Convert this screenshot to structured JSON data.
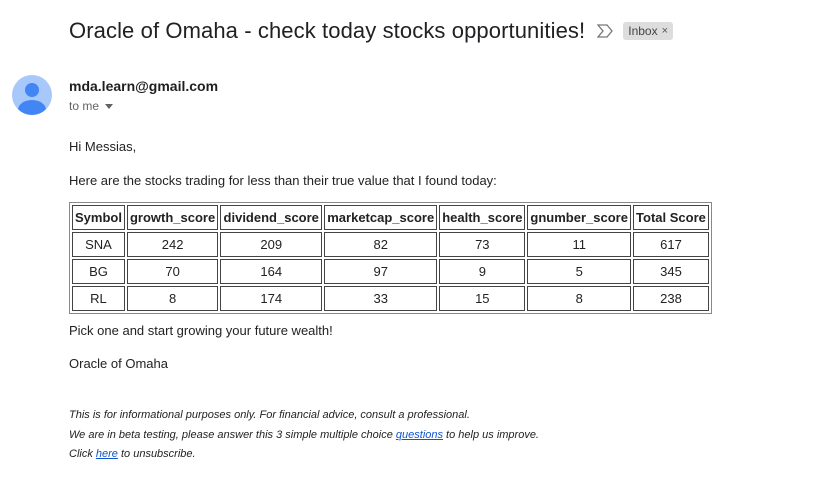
{
  "email": {
    "subject": "Oracle of Omaha - check today stocks opportunities!",
    "label": "Inbox",
    "label_remove": "×",
    "sender": "mda.learn@gmail.com",
    "recipient": "to me"
  },
  "body": {
    "greeting": "Hi Messias,",
    "intro": "Here are the stocks trading for less than their true value that I found today:",
    "cta": "Pick one and start growing your future wealth!",
    "signature": "Oracle of Omaha"
  },
  "table": {
    "headers": [
      "Symbol",
      "growth_score",
      "dividend_score",
      "marketcap_score",
      "health_score",
      "gnumber_score",
      "Total Score"
    ],
    "rows": [
      [
        "SNA",
        "242",
        "209",
        "82",
        "73",
        "11",
        "617"
      ],
      [
        "BG",
        "70",
        "164",
        "97",
        "9",
        "5",
        "345"
      ],
      [
        "RL",
        "8",
        "174",
        "33",
        "15",
        "8",
        "238"
      ]
    ]
  },
  "footer": {
    "disclaimer": "This is for informational purposes only. For financial advice, consult a professional.",
    "beta_pre": "We are in beta testing, please answer this 3 simple multiple choice ",
    "beta_link": "questions",
    "beta_post": " to help us improve.",
    "unsub_pre": "Click ",
    "unsub_link": "here",
    "unsub_post": " to unsubscribe."
  },
  "colors": {
    "avatar_bg": "#a8c7fa",
    "avatar_fg": "#4285f4",
    "link": "#1155cc"
  }
}
